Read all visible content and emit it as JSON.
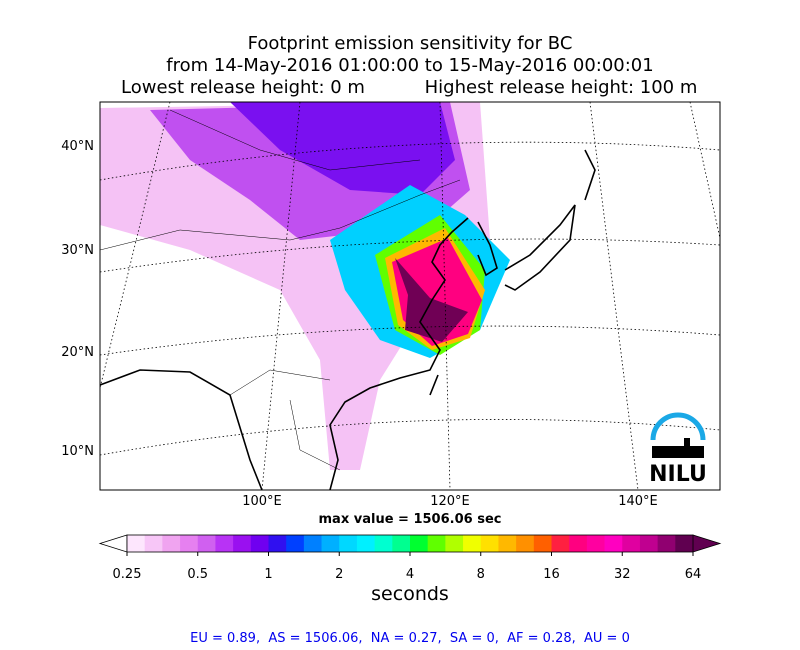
{
  "title": [
    "Footprint emission sensitivity for BC",
    "from 14-May-2016 01:00:00 to 15-May-2016 00:00:01"
  ],
  "release": {
    "lowest": "Lowest release height: 0 m",
    "highest": "Highest release height: 100 m"
  },
  "map": {
    "lat_labels": [
      "40°N",
      "30°N",
      "20°N",
      "10°N"
    ],
    "lon_labels": [
      "100°E",
      "120°E",
      "140°E"
    ],
    "logo": "NILU"
  },
  "max_value": "max value = 1506.06 sec",
  "colorbar": {
    "type": "colorbar",
    "scale": "log",
    "clim": [
      0.25,
      64
    ],
    "ticks": [
      0.25,
      0.5,
      1,
      2,
      4,
      8,
      16,
      32,
      64
    ],
    "label": "seconds",
    "under_color": "#ffffff",
    "over_color": "#600050",
    "colors": [
      "#fde6fd",
      "#f7c6f7",
      "#f0a4f0",
      "#e680f0",
      "#d060f0",
      "#b833f5",
      "#9a10f0",
      "#7000f0",
      "#3010f0",
      "#0040ff",
      "#0080ff",
      "#00b0ff",
      "#00d8ff",
      "#00f0ff",
      "#00ffd0",
      "#00ff90",
      "#00ff30",
      "#60ff00",
      "#b0ff00",
      "#f0ff00",
      "#ffe000",
      "#ffb800",
      "#ff9000",
      "#ff6000",
      "#ff2040",
      "#ff0080",
      "#ff00a0",
      "#ff00c0",
      "#e000a0",
      "#c00090",
      "#900070",
      "#600050"
    ]
  },
  "stats": "EU = 0.89,  AS = 1506.06,  NA = 0.27,  SA = 0,  AF = 0.28,  AU = 0"
}
